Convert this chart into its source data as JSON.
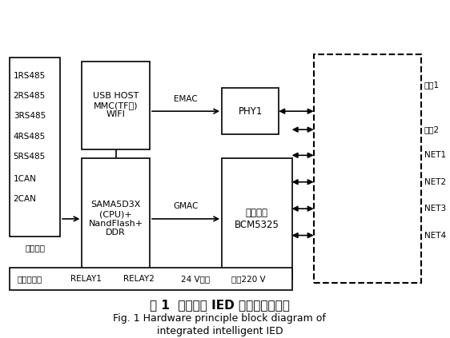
{
  "title_cn": "图 1  整合型主 IED 的硬件原理框图",
  "title_en1": "Fig. 1 Hardware principle block diagram of",
  "title_en2": "integrated intelligent IED",
  "bg_color": "#ffffff",
  "box_edge_color": "#000000",
  "text_color": "#000000",
  "left_labels": [
    "1RS485",
    "2RS485",
    "3RS485",
    "4RS485",
    "5RS485",
    "1CAN",
    "2CAN"
  ],
  "right_labels": [
    "光口1",
    "光口2",
    "NET1",
    "NET2",
    "NET3",
    "NET4"
  ],
  "sig_labels": [
    "信号及电源",
    "RELAY1",
    "RELAY2",
    "24 V输出",
    "电源220 V"
  ]
}
